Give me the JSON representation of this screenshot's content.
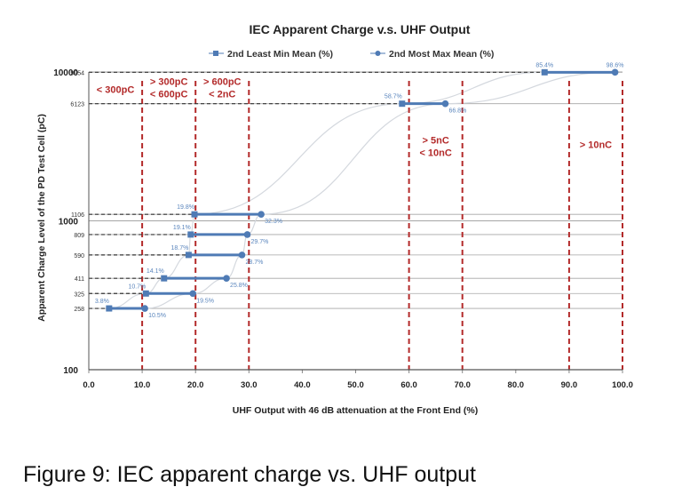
{
  "chart_data": {
    "type": "line",
    "title": "IEC Apparent Charge v.s. UHF Output",
    "xlabel": "UHF Output with 46 dB attenuation at the Front End (%)",
    "ylabel": "Apparent Charge Level of the PD Test Cell (pC)",
    "xlim": [
      0,
      100
    ],
    "ylim": [
      100,
      10000
    ],
    "y_scale": "log",
    "grid": true,
    "legend_position": "top",
    "x_ticks": [
      "0.0",
      "10.0",
      "20.0",
      "30.0",
      "40.0",
      "50.0",
      "60.0",
      "70.0",
      "80.0",
      "90.0",
      "100.0"
    ],
    "y_ticks": [
      {
        "value": 100,
        "label": "100"
      },
      {
        "value": 1000,
        "label": "1000"
      },
      {
        "value": 10000,
        "label": "10000"
      }
    ],
    "levels": [
      258,
      325,
      411,
      590,
      809,
      1106,
      6123,
      9954
    ],
    "level_labels": [
      "258",
      "325",
      "411",
      "590",
      "809",
      "1106",
      "6123",
      "9954"
    ],
    "series": [
      {
        "name": "2nd Least Min Mean (%)",
        "marker": "square",
        "x": [
          3.8,
          10.7,
          14.1,
          18.7,
          19.1,
          19.8,
          58.7,
          85.4
        ],
        "labels": [
          "3.8%",
          "10.7%",
          "14.1%",
          "18.7%",
          "19.1%",
          "19.8%",
          "58.7%",
          "85.4%"
        ]
      },
      {
        "name": "2nd Most Max Mean (%)",
        "marker": "circle",
        "x": [
          10.5,
          19.5,
          25.8,
          28.7,
          29.7,
          32.3,
          66.8,
          98.6
        ],
        "labels": [
          "10.5%",
          "19.5%",
          "25.8%",
          "28.7%",
          "29.7%",
          "32.3%",
          "66.8%",
          "98.6%"
        ]
      }
    ],
    "boundaries": [
      10,
      20,
      30,
      60,
      70,
      90,
      100
    ],
    "zones": [
      {
        "lines": [
          "< 300pC"
        ],
        "x": 5,
        "anchor": "middle"
      },
      {
        "lines": [
          "> 300pC",
          "< 600pC"
        ],
        "x": 15,
        "anchor": "middle"
      },
      {
        "lines": [
          "> 600pC",
          "< 2nC"
        ],
        "x": 25,
        "anchor": "middle"
      },
      {
        "lines": [
          "> 5nC",
          "< 10nC"
        ],
        "x": 65,
        "anchor": "middle"
      },
      {
        "lines": [
          "> 10nC"
        ],
        "x": 95,
        "anchor": "middle"
      }
    ],
    "colors": {
      "series": "#4f7bb5",
      "label": "#5b86bd",
      "boundary": "#b32a2a",
      "zone_text": "#b32a2a",
      "grid": "#a6a6a6",
      "curve": "#d4d8de",
      "text": "#222222"
    }
  },
  "caption": "Figure 9: IEC apparent charge vs. UHF output"
}
